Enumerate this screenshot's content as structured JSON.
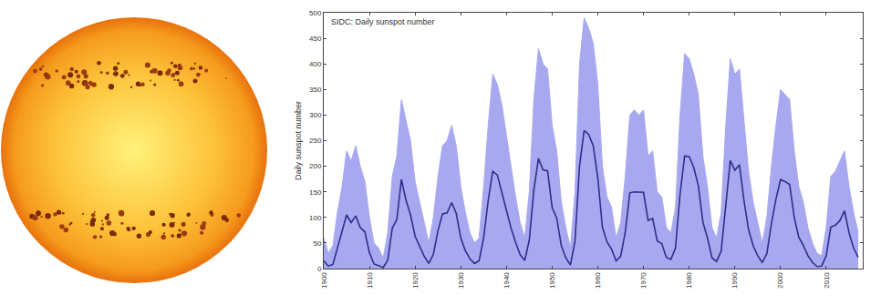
{
  "chart_data": {
    "type": "line",
    "title": "SIDC: Daily sunspot number",
    "y_label": "Daily sunspot number",
    "x": [
      1900,
      1901,
      1902,
      1903,
      1904,
      1905,
      1906,
      1907,
      1908,
      1909,
      1910,
      1911,
      1912,
      1913,
      1914,
      1915,
      1916,
      1917,
      1918,
      1919,
      1920,
      1921,
      1922,
      1923,
      1924,
      1925,
      1926,
      1927,
      1928,
      1929,
      1930,
      1931,
      1932,
      1933,
      1934,
      1935,
      1936,
      1937,
      1938,
      1939,
      1940,
      1941,
      1942,
      1943,
      1944,
      1945,
      1946,
      1947,
      1948,
      1949,
      1950,
      1951,
      1952,
      1953,
      1954,
      1955,
      1956,
      1957,
      1958,
      1959,
      1960,
      1961,
      1962,
      1963,
      1964,
      1965,
      1966,
      1967,
      1968,
      1969,
      1970,
      1971,
      1972,
      1973,
      1974,
      1975,
      1976,
      1977,
      1978,
      1979,
      1980,
      1981,
      1982,
      1983,
      1984,
      1985,
      1986,
      1987,
      1988,
      1989,
      1990,
      1991,
      1992,
      1993,
      1994,
      1995,
      1996,
      1997,
      1998,
      1999,
      2000,
      2001,
      2002,
      2003,
      2004,
      2005,
      2006,
      2007,
      2008,
      2009,
      2010,
      2011,
      2012,
      2013,
      2014,
      2015,
      2016,
      2017
    ],
    "series": [
      {
        "type": "area",
        "color": "#a8a8f0",
        "values": [
          60,
          30,
          45,
          110,
          160,
          230,
          210,
          240,
          200,
          170,
          100,
          50,
          40,
          20,
          70,
          180,
          220,
          330,
          290,
          250,
          170,
          130,
          90,
          50,
          100,
          180,
          240,
          250,
          280,
          240,
          160,
          110,
          70,
          50,
          60,
          160,
          280,
          380,
          360,
          320,
          260,
          200,
          140,
          90,
          60,
          150,
          330,
          430,
          400,
          390,
          280,
          230,
          130,
          80,
          40,
          150,
          400,
          490,
          470,
          440,
          360,
          200,
          140,
          120,
          60,
          90,
          180,
          300,
          310,
          300,
          310,
          220,
          230,
          150,
          140,
          80,
          70,
          120,
          300,
          420,
          410,
          380,
          340,
          220,
          160,
          80,
          60,
          110,
          280,
          410,
          380,
          390,
          290,
          190,
          130,
          90,
          50,
          100,
          200,
          280,
          350,
          340,
          330,
          230,
          160,
          130,
          80,
          50,
          30,
          25,
          80,
          180,
          190,
          210,
          230,
          160,
          110,
          70
        ]
      },
      {
        "type": "line",
        "color": "#2e2e8a",
        "values": [
          15,
          5,
          8,
          40,
          70,
          105,
          90,
          103,
          80,
          72,
          31,
          9,
          6,
          2,
          16,
          79,
          96,
          174,
          134,
          105,
          63,
          43,
          24,
          10,
          28,
          74,
          107,
          109,
          129,
          108,
          60,
          35,
          19,
          10,
          15,
          60,
          133,
          190,
          183,
          148,
          113,
          79,
          51,
          27,
          16,
          56,
          154,
          215,
          193,
          191,
          119,
          99,
          45,
          21,
          7,
          54,
          201,
          270,
          262,
          240,
          177,
          81,
          52,
          38,
          15,
          24,
          71,
          148,
          150,
          149,
          149,
          94,
          98,
          54,
          49,
          22,
          18,
          40,
          145,
          220,
          219,
          198,
          162,
          91,
          60,
          21,
          14,
          34,
          123,
          211,
          192,
          203,
          133,
          76,
          45,
          25,
          12,
          29,
          88,
          136,
          174,
          170,
          164,
          100,
          61,
          45,
          25,
          12,
          4,
          5,
          25,
          81,
          85,
          94,
          113,
          70,
          40,
          22
        ]
      }
    ],
    "xlim": [
      1900,
      2018
    ],
    "xticks": [
      1900,
      1910,
      1920,
      1930,
      1940,
      1950,
      1960,
      1970,
      1980,
      1990,
      2000,
      2010
    ],
    "ylim": [
      0,
      500
    ],
    "yticks": [
      0,
      50,
      100,
      150,
      200,
      250,
      300,
      350,
      400,
      450,
      500
    ],
    "grid": false
  }
}
